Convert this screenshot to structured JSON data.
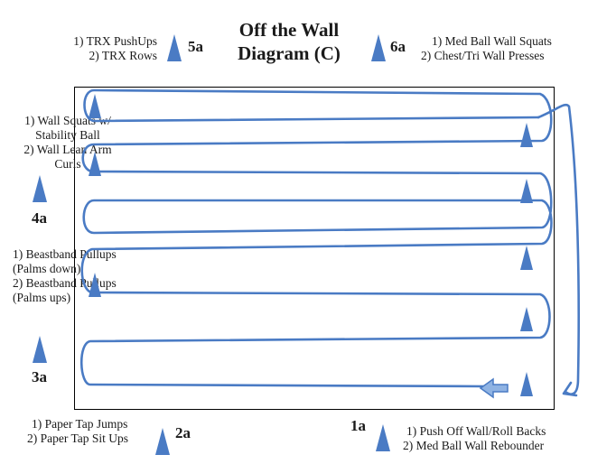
{
  "title_line1": "Off the Wall",
  "title_line2": "Diagram (C)",
  "stations": {
    "s5a": {
      "number": "5a",
      "line1": "1) TRX PushUps",
      "line2": "2) TRX Rows"
    },
    "s6a": {
      "number": "6a",
      "line1": "1) Med Ball Wall Squats",
      "line2": "2) Chest/Tri Wall Presses"
    },
    "s4a": {
      "number": "4a",
      "line1": "1) Wall Squats w/",
      "line2": "Stability Ball",
      "line3": "2) Wall Lean Arm",
      "line4": "Curls"
    },
    "s3a": {
      "number": "3a",
      "line1": "1) Beastband Pullups",
      "line2": "(Palms down)",
      "line3": "2) Beastband Pullups",
      "line4": "(Palms ups)"
    },
    "s2a": {
      "number": "2a",
      "line1": "1) Paper Tap Jumps",
      "line2": "2)  Paper Tap Sit Ups"
    },
    "s1a": {
      "number": "1a",
      "line1": "1) Push Off Wall/Roll Backs",
      "line2": "2) Med Ball Wall Rebounder"
    }
  },
  "colors": {
    "path": "#4a7bc4",
    "cone": "#4a7bc4",
    "border": "#000000"
  }
}
